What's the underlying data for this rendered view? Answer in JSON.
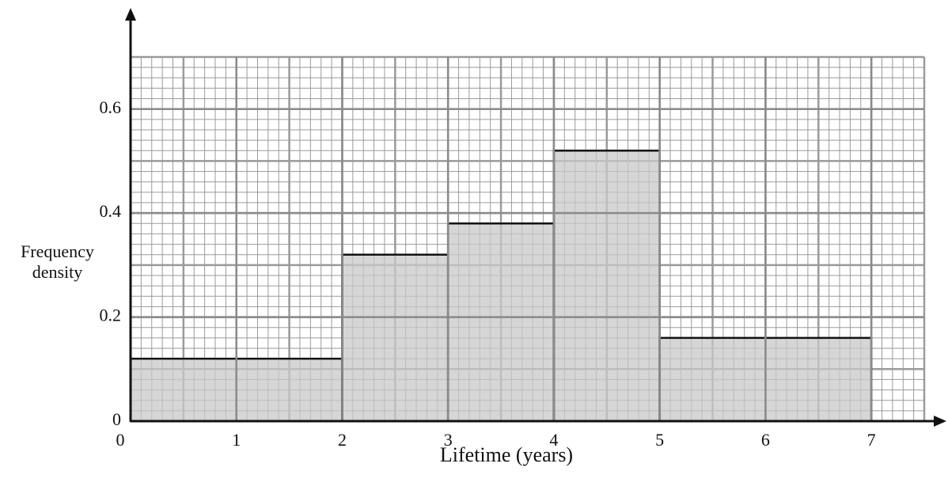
{
  "chart_data": {
    "type": "histogram",
    "x_label": "Lifetime (years)",
    "y_label": "Frequency density",
    "bins": [
      0,
      2,
      3,
      4,
      5,
      7
    ],
    "values": [
      0.12,
      0.32,
      0.38,
      0.52,
      0.16
    ],
    "color": "#c8c8c8",
    "xlim": [
      0,
      7.5
    ],
    "ylim": [
      0,
      0.7
    ],
    "xticks": [
      0,
      1,
      2,
      3,
      4,
      5,
      6,
      7
    ],
    "yticks": [
      0,
      0.2,
      0.4,
      0.6
    ],
    "grid": true
  }
}
